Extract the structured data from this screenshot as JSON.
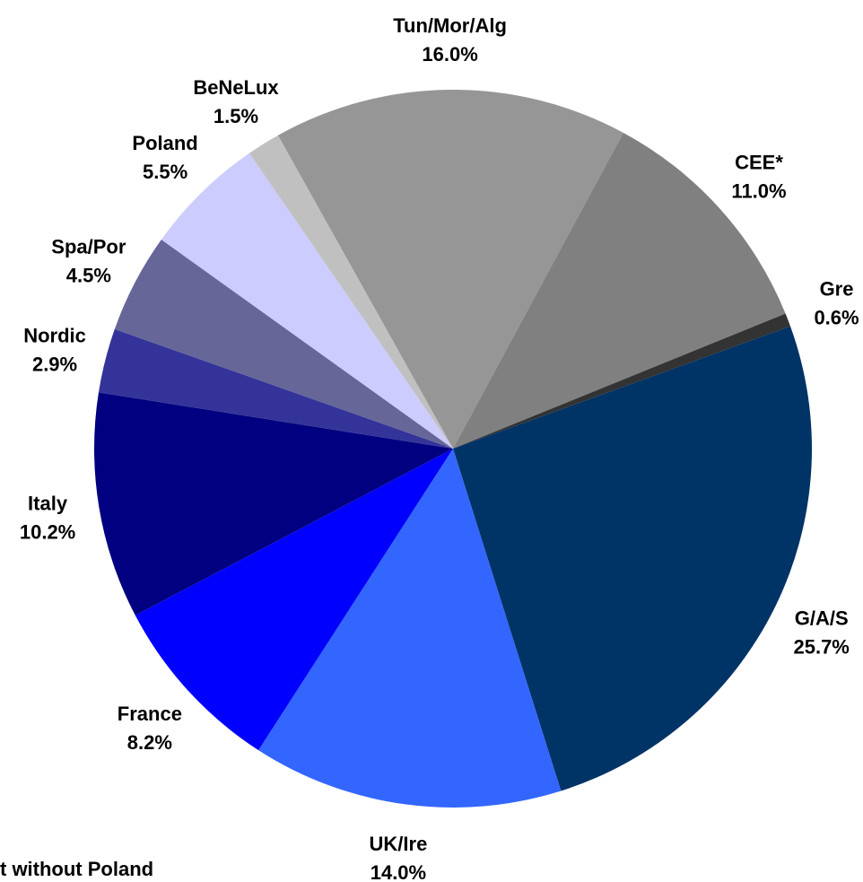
{
  "chart_data": {
    "type": "pie",
    "categories": [
      "Tun/Mor/Alg",
      "CEE*",
      "Gre",
      "G/A/S",
      "UK/Ire",
      "France",
      "Italy",
      "Nordic",
      "Spa/Por",
      "Poland",
      "BeNeLux"
    ],
    "values": [
      16.0,
      11.0,
      0.6,
      25.7,
      14.0,
      8.2,
      10.2,
      2.9,
      4.5,
      5.5,
      1.5
    ],
    "value_labels": [
      "16.0%",
      "11.0%",
      "0.6%",
      "25.7%",
      "14.0%",
      "8.2%",
      "10.2%",
      "2.9%",
      "4.5%",
      "5.5%",
      "1.5%"
    ],
    "colors": [
      "#969696",
      "#808080",
      "#333333",
      "#003366",
      "#3366ff",
      "#0000ff",
      "#000080",
      "#333399",
      "#666699",
      "#ccccff",
      "#c0c0c0"
    ],
    "footnote": "t without Poland"
  }
}
